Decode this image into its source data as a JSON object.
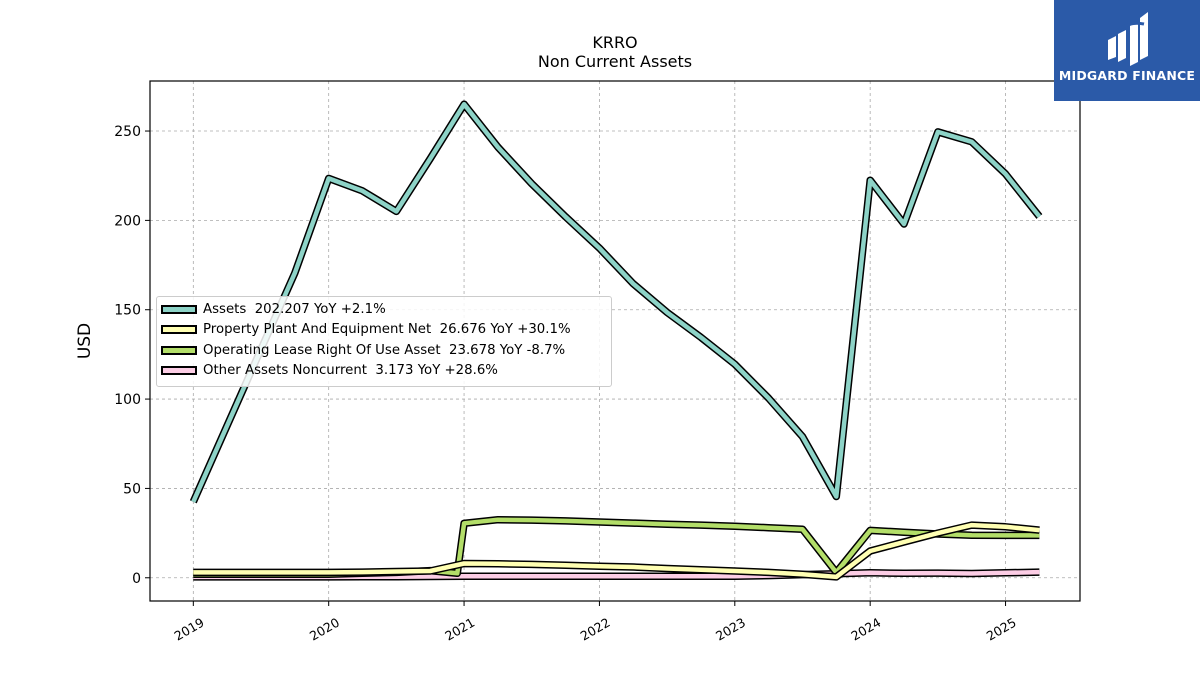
{
  "chart_data": {
    "type": "line",
    "title": "KRRO",
    "subtitle": "Non Current  Assets",
    "ylabel": "USD",
    "xlabel": "",
    "ylim": [
      -13,
      278
    ],
    "xlim": [
      2018.68,
      2025.55
    ],
    "x_ticks": [
      2019,
      2020,
      2021,
      2022,
      2023,
      2024,
      2025
    ],
    "x_tick_labels": [
      "2019",
      "2020",
      "2021",
      "2022",
      "2023",
      "2024",
      "2025"
    ],
    "y_ticks": [
      0,
      50,
      100,
      150,
      200,
      250
    ],
    "y_tick_labels": [
      "0",
      "50",
      "100",
      "150",
      "200",
      "250"
    ],
    "grid": true,
    "legend_position": "center-left",
    "series": [
      {
        "name": "Assets",
        "legend_label": "Assets  202.207 YoY +2.1%",
        "color": "#8dd3c7",
        "x": [
          2019.0,
          2019.75,
          2020.0,
          2020.25,
          2020.5,
          2020.75,
          2021.0,
          2021.25,
          2021.5,
          2021.75,
          2022.0,
          2022.25,
          2022.5,
          2022.75,
          2023.0,
          2023.25,
          2023.5,
          2023.75,
          2024.0,
          2024.25,
          2024.5,
          2024.75,
          2025.0,
          2025.25
        ],
        "y": [
          42.5,
          170.5,
          223.5,
          216.5,
          205.0,
          234.5,
          265.0,
          241.0,
          220.5,
          202.0,
          184.5,
          164.5,
          148.5,
          134.5,
          119.5,
          100.5,
          79.0,
          45.5,
          222.5,
          198.0,
          249.5,
          244.0,
          226.0,
          202.2
        ]
      },
      {
        "name": "Property Plant And Equipment Net",
        "legend_label": "Property Plant And Equipment Net  26.676 YoY +30.1%",
        "color": "#ffffb3",
        "x": [
          2019.0,
          2019.75,
          2020.0,
          2020.25,
          2020.5,
          2020.75,
          2021.0,
          2021.25,
          2021.5,
          2021.75,
          2022.0,
          2022.25,
          2022.5,
          2022.75,
          2023.0,
          2023.25,
          2023.5,
          2023.75,
          2024.0,
          2024.25,
          2024.5,
          2024.75,
          2025.0,
          2025.25
        ],
        "y": [
          3.0,
          3.0,
          3.0,
          3.2,
          3.5,
          3.8,
          8.0,
          7.8,
          7.5,
          7.0,
          6.5,
          6.0,
          5.2,
          4.5,
          3.8,
          3.0,
          2.0,
          0.5,
          15.0,
          20.0,
          25.0,
          29.5,
          28.5,
          26.7
        ]
      },
      {
        "name": "Operating Lease Right Of Use Asset",
        "legend_label": "Operating Lease Right Of Use Asset  23.678 YoY -8.7%",
        "color": "#b3de69",
        "x": [
          2019.0,
          2019.75,
          2020.0,
          2020.25,
          2020.5,
          2020.75,
          2020.95,
          2021.0,
          2021.25,
          2021.5,
          2021.75,
          2022.0,
          2022.25,
          2022.5,
          2022.75,
          2023.0,
          2023.25,
          2023.5,
          2023.75,
          2024.0,
          2024.25,
          2024.5,
          2024.75,
          2025.0,
          2025.25
        ],
        "y": [
          2.0,
          2.0,
          2.0,
          2.5,
          3.0,
          4.0,
          2.5,
          30.5,
          32.5,
          32.3,
          31.8,
          31.2,
          30.6,
          30.0,
          29.5,
          28.8,
          28.0,
          27.2,
          3.0,
          26.5,
          25.5,
          24.5,
          23.8,
          23.7,
          23.7
        ]
      },
      {
        "name": "Other Assets Noncurrent",
        "legend_label": "Other Assets Noncurrent  3.173 YoY +28.6%",
        "color": "#fccde5",
        "x": [
          2019.0,
          2019.75,
          2020.0,
          2020.25,
          2020.5,
          2020.75,
          2021.0,
          2021.25,
          2021.5,
          2021.75,
          2022.0,
          2022.25,
          2022.5,
          2022.75,
          2023.0,
          2023.25,
          2023.5,
          2023.75,
          2024.0,
          2024.25,
          2024.5,
          2024.75,
          2025.0,
          2025.25
        ],
        "y": [
          0.5,
          0.5,
          0.5,
          0.6,
          0.6,
          0.7,
          0.8,
          0.8,
          0.8,
          0.8,
          0.8,
          0.8,
          0.8,
          0.8,
          0.8,
          1.2,
          1.8,
          2.2,
          2.8,
          2.5,
          2.6,
          2.4,
          2.8,
          3.2
        ]
      }
    ]
  },
  "logo": {
    "text": "MIDGARD FINANCE",
    "background": "#2b5aa8"
  }
}
